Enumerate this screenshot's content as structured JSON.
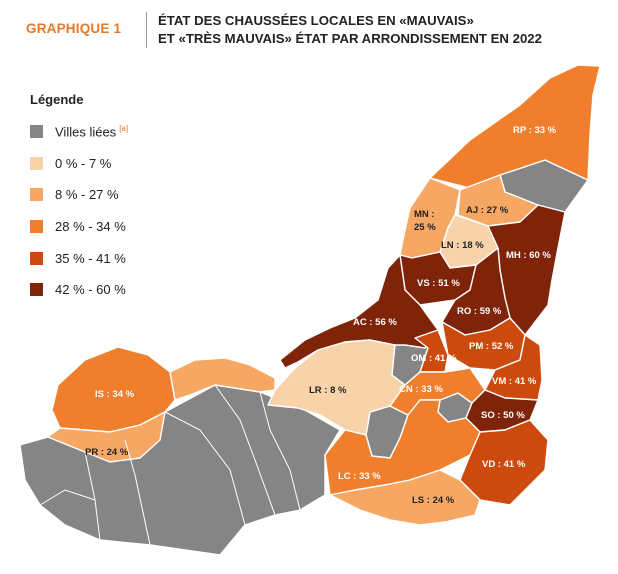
{
  "header": {
    "figure_label": "GRAPHIQUE 1",
    "title_line1": "ÉTAT DES CHAUSSÉES LOCALES EN «MAUVAIS»",
    "title_line2": "ET «TRÈS MAUVAIS» ÉTAT PAR ARRONDISSEMENT EN 2022"
  },
  "colors": {
    "accent": "#e07a2a",
    "villes_liees": "#858585",
    "c0_7": "#f8d3aa",
    "c8_27": "#f5a763",
    "c28_34": "#ef7f2c",
    "c35_41": "#cc4a0d",
    "c42_60": "#7f2309"
  },
  "legend": {
    "title": "Légende",
    "items": [
      {
        "label": "Villes liées",
        "note": "[a]",
        "color": "#858585"
      },
      {
        "label": "0 % - 7 %",
        "color": "#f8d3aa"
      },
      {
        "label": "8 % - 27 %",
        "color": "#f5a763"
      },
      {
        "label": "28 % - 34 %",
        "color": "#ef7f2c"
      },
      {
        "label": "35 % - 41 %",
        "color": "#cc4a0d"
      },
      {
        "label": "42 % - 60 %",
        "color": "#7f2309"
      }
    ]
  },
  "boroughs": {
    "rp": {
      "label": "RP : 33 %",
      "value": 33
    },
    "aj": {
      "label": "AJ : 27 %",
      "value": 27
    },
    "mn": {
      "label1": "MN :",
      "label2": "25 %",
      "value": 25
    },
    "ln": {
      "label": "LN : 18 %",
      "value": 18
    },
    "mh": {
      "label": "MH : 60 %",
      "value": 60
    },
    "vs": {
      "label": "VS : 51 %",
      "value": 51
    },
    "ac": {
      "label": "AC : 56 %",
      "value": 56
    },
    "ro": {
      "label": "RO : 59 %",
      "value": 59
    },
    "pm": {
      "label": "PM : 52 %",
      "value": 52
    },
    "om": {
      "label": "OM : 41 %",
      "value": 41
    },
    "is": {
      "label": "IS : 34 %",
      "value": 34
    },
    "lr": {
      "label": "LR : 8 %",
      "value": 8
    },
    "cn": {
      "label": "CN : 33 %",
      "value": 33
    },
    "vm": {
      "label": "VM : 41 %",
      "value": 41
    },
    "so": {
      "label": "SO : 50 %",
      "value": 50
    },
    "pr": {
      "label": "PR : 24 %",
      "value": 24
    },
    "vd": {
      "label": "VD : 41 %",
      "value": 41
    },
    "lc": {
      "label": "LC : 33 %",
      "value": 33
    },
    "ls": {
      "label": "LS : 24 %",
      "value": 24
    }
  }
}
